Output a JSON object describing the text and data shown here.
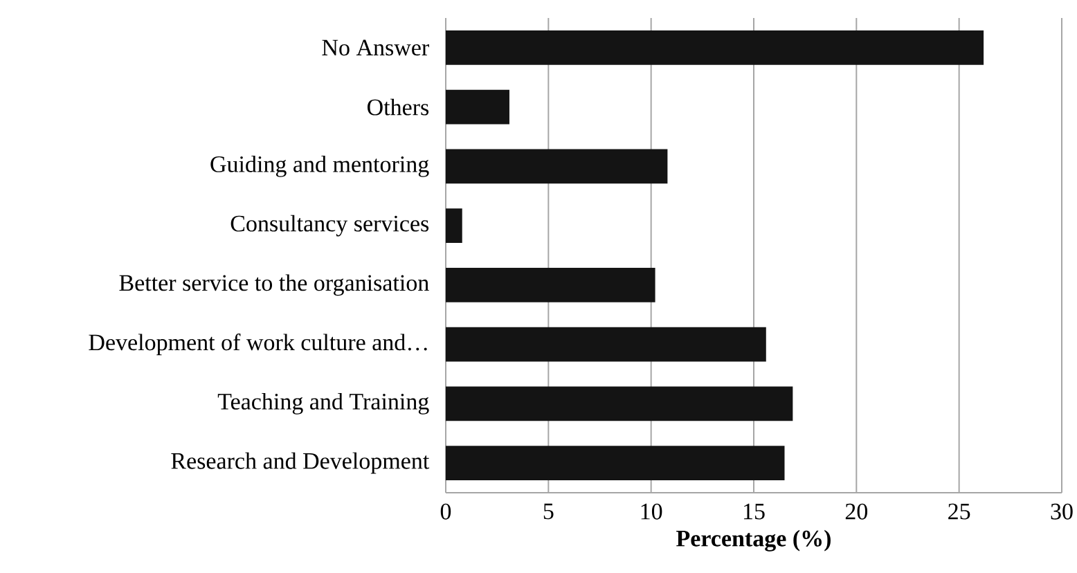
{
  "chart_data": {
    "type": "bar",
    "orientation": "horizontal",
    "xlabel": "Percentage (%)",
    "categories": [
      "No Answer",
      "Others",
      "Guiding and mentoring",
      "Consultancy services",
      "Better service to the organisation",
      "Development of work culture and…",
      "Teaching and Training",
      "Research and Development"
    ],
    "values": [
      26.2,
      3.1,
      10.8,
      0.8,
      10.2,
      15.6,
      16.9,
      16.5
    ],
    "color": "#141414",
    "xlim": [
      0,
      30
    ],
    "xticks": [
      0,
      5,
      10,
      15,
      20,
      25,
      30
    ],
    "grid": "x"
  }
}
